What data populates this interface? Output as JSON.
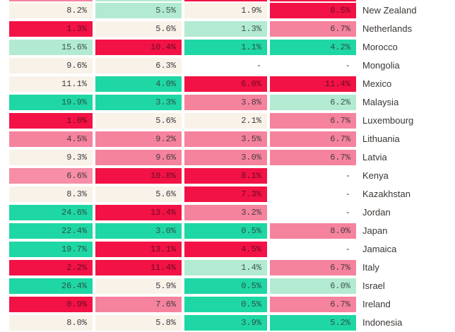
{
  "palette": {
    "red": "#f31245",
    "pink": "#f5839e",
    "pink_light": "#f78da6",
    "cream": "#f8f2e9",
    "mint": "#b2ebd1",
    "teal": "#1ed7a4",
    "none": "transparent",
    "page_background": "#ffffff",
    "label_text": "#3b3734",
    "cell_text": "#3f3d41"
  },
  "chart_data": {
    "type": "heatmap",
    "title": "",
    "columns": [
      "col-1",
      "col-2",
      "col-3",
      "col-4"
    ],
    "cutoff_top_row_colors": [
      "pink",
      "mint",
      "red",
      "red"
    ],
    "rows": [
      {
        "country": "New Zealand",
        "cells": [
          {
            "v": "8.2%",
            "c": "cream"
          },
          {
            "v": "5.5%",
            "c": "mint"
          },
          {
            "v": "1.9%",
            "c": "cream"
          },
          {
            "v": "8.5%",
            "c": "red"
          }
        ]
      },
      {
        "country": "Netherlands",
        "cells": [
          {
            "v": "1.3%",
            "c": "red"
          },
          {
            "v": "5.6%",
            "c": "cream"
          },
          {
            "v": "1.3%",
            "c": "mint"
          },
          {
            "v": "6.7%",
            "c": "pink"
          }
        ]
      },
      {
        "country": "Morocco",
        "cells": [
          {
            "v": "15.6%",
            "c": "mint"
          },
          {
            "v": "10.4%",
            "c": "red"
          },
          {
            "v": "1.1%",
            "c": "teal"
          },
          {
            "v": "4.2%",
            "c": "teal"
          }
        ]
      },
      {
        "country": "Mongolia",
        "cells": [
          {
            "v": "9.6%",
            "c": "cream"
          },
          {
            "v": "6.3%",
            "c": "cream"
          },
          {
            "v": "-",
            "c": "none"
          },
          {
            "v": "-",
            "c": "none"
          }
        ]
      },
      {
        "country": "Mexico",
        "cells": [
          {
            "v": "11.1%",
            "c": "cream"
          },
          {
            "v": "4.0%",
            "c": "teal"
          },
          {
            "v": "6.0%",
            "c": "red"
          },
          {
            "v": "11.4%",
            "c": "red"
          }
        ]
      },
      {
        "country": "Malaysia",
        "cells": [
          {
            "v": "19.9%",
            "c": "teal"
          },
          {
            "v": "3.3%",
            "c": "teal"
          },
          {
            "v": "3.8%",
            "c": "pink"
          },
          {
            "v": "6.2%",
            "c": "mint"
          }
        ]
      },
      {
        "country": "Luxembourg",
        "cells": [
          {
            "v": "1.0%",
            "c": "red"
          },
          {
            "v": "5.6%",
            "c": "cream"
          },
          {
            "v": "2.1%",
            "c": "cream"
          },
          {
            "v": "6.7%",
            "c": "pink"
          }
        ]
      },
      {
        "country": "Lithuania",
        "cells": [
          {
            "v": "4.5%",
            "c": "pink"
          },
          {
            "v": "9.2%",
            "c": "pink"
          },
          {
            "v": "3.5%",
            "c": "pink"
          },
          {
            "v": "6.7%",
            "c": "pink"
          }
        ]
      },
      {
        "country": "Latvia",
        "cells": [
          {
            "v": "9.3%",
            "c": "cream"
          },
          {
            "v": "9.6%",
            "c": "pink"
          },
          {
            "v": "3.0%",
            "c": "pink"
          },
          {
            "v": "6.7%",
            "c": "pink"
          }
        ]
      },
      {
        "country": "Kenya",
        "cells": [
          {
            "v": "6.6%",
            "c": "pink_light"
          },
          {
            "v": "10.8%",
            "c": "red"
          },
          {
            "v": "8.1%",
            "c": "red"
          },
          {
            "v": "-",
            "c": "none"
          }
        ]
      },
      {
        "country": "Kazakhstan",
        "cells": [
          {
            "v": "8.3%",
            "c": "cream"
          },
          {
            "v": "5.6%",
            "c": "cream"
          },
          {
            "v": "7.3%",
            "c": "red"
          },
          {
            "v": "-",
            "c": "none"
          }
        ]
      },
      {
        "country": "Jordan",
        "cells": [
          {
            "v": "24.6%",
            "c": "teal"
          },
          {
            "v": "13.4%",
            "c": "red"
          },
          {
            "v": "3.2%",
            "c": "pink"
          },
          {
            "v": "-",
            "c": "none"
          }
        ]
      },
      {
        "country": "Japan",
        "cells": [
          {
            "v": "22.4%",
            "c": "teal"
          },
          {
            "v": "3.0%",
            "c": "teal"
          },
          {
            "v": "0.5%",
            "c": "teal"
          },
          {
            "v": "8.0%",
            "c": "pink"
          }
        ]
      },
      {
        "country": "Jamaica",
        "cells": [
          {
            "v": "19.7%",
            "c": "teal"
          },
          {
            "v": "13.1%",
            "c": "red"
          },
          {
            "v": "4.5%",
            "c": "red"
          },
          {
            "v": "-",
            "c": "none"
          }
        ]
      },
      {
        "country": "Italy",
        "cells": [
          {
            "v": "2.2%",
            "c": "red"
          },
          {
            "v": "11.4%",
            "c": "red"
          },
          {
            "v": "1.4%",
            "c": "mint"
          },
          {
            "v": "6.7%",
            "c": "pink"
          }
        ]
      },
      {
        "country": "Israel",
        "cells": [
          {
            "v": "26.4%",
            "c": "teal"
          },
          {
            "v": "5.9%",
            "c": "cream"
          },
          {
            "v": "0.5%",
            "c": "teal"
          },
          {
            "v": "6.0%",
            "c": "mint"
          }
        ]
      },
      {
        "country": "Ireland",
        "cells": [
          {
            "v": "0.9%",
            "c": "red"
          },
          {
            "v": "7.6%",
            "c": "pink"
          },
          {
            "v": "0.5%",
            "c": "teal"
          },
          {
            "v": "6.7%",
            "c": "pink"
          }
        ]
      },
      {
        "country": "Indonesia",
        "cells": [
          {
            "v": "8.0%",
            "c": "cream"
          },
          {
            "v": "5.8%",
            "c": "cream"
          },
          {
            "v": "3.9%",
            "c": "teal"
          },
          {
            "v": "5.2%",
            "c": "teal"
          }
        ]
      }
    ]
  }
}
